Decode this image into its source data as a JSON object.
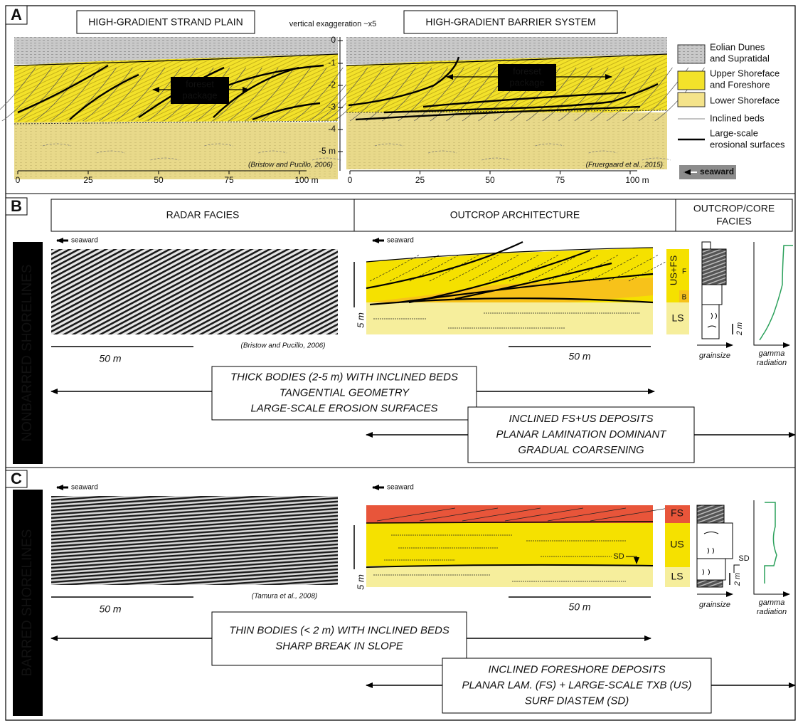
{
  "panel_a": {
    "label": "A",
    "left_title": "HIGH-GRADIENT STRAND PLAIN",
    "right_title": "HIGH-GRADIENT BARRIER SYSTEM",
    "exaggeration": "vertical exaggeration ~x5",
    "depth_ticks": [
      "0",
      "-1",
      "-2",
      "-3",
      "-4",
      "-5 m"
    ],
    "left_x_ticks": [
      "0",
      "25",
      "50",
      "75",
      "100 m"
    ],
    "right_x_ticks": [
      "0",
      "25",
      "50",
      "75",
      "100 m"
    ],
    "left_foreset": [
      "foreset",
      "package"
    ],
    "right_foreset": [
      "foreset",
      "package"
    ],
    "left_citation": "(Bristow and Pucillo, 2006)",
    "right_citation": "(Fruergaard et al., 2015)",
    "legend": [
      {
        "lines": [
          "Eolian Dunes",
          "and Supratidal"
        ]
      },
      {
        "lines": [
          "Upper Shoreface",
          "and Foreshore"
        ]
      },
      {
        "lines": [
          "Lower Shoreface"
        ]
      },
      {
        "lines": [
          "Inclined beds"
        ]
      },
      {
        "lines": [
          "Large-scale",
          "erosional surfaces"
        ]
      }
    ],
    "seaward": "seaward"
  },
  "panel_b": {
    "label": "B",
    "headers": [
      "RADAR FACIES",
      "OUTCROP ARCHITECTURE",
      [
        "OUTCROP/CORE",
        "FACIES"
      ]
    ],
    "side_label": "NONBARRED SHORELINES",
    "radar_seaward": "seaward",
    "outcrop_seaward": "seaward",
    "citation": "(Bristow and Pucillo, 2006)",
    "radar_scale": "50 m",
    "outcrop_scale": "50 m",
    "vertical_scale": "5 m",
    "facies": [
      "US+FS",
      "F",
      "B",
      "LS"
    ],
    "core_scale": "2 m",
    "grainsize": "grainsize",
    "gamma": [
      "gamma",
      "radiation"
    ],
    "box_1": [
      "THICK BODIES (2-5 m) WITH INCLINED BEDS",
      "TANGENTIAL GEOMETRY",
      "LARGE-SCALE EROSION SURFACES"
    ],
    "box_2": [
      "INCLINED FS+US DEPOSITS",
      "PLANAR LAMINATION DOMINANT",
      "GRADUAL COARSENING"
    ]
  },
  "panel_c": {
    "label": "C",
    "side_label": "BARRED SHORELINES",
    "radar_seaward": "seaward",
    "outcrop_seaward": "seaward",
    "citation": "(Tamura et al., 2008)",
    "radar_scale": "50 m",
    "outcrop_scale": "50 m",
    "vertical_scale": "5 m",
    "facies": [
      "FS",
      "US",
      "LS"
    ],
    "sd_outcrop": "SD",
    "sd_core": "SD",
    "core_scale": "2 m",
    "grainsize": "grainsize",
    "gamma": [
      "gamma",
      "radiation"
    ],
    "box_1": [
      "THIN BODIES (< 2 m) WITH INCLINED BEDS",
      "SHARP BREAK IN SLOPE"
    ],
    "box_2": [
      "INCLINED FORESHORE DEPOSITS",
      "PLANAR LAM. (FS) + LARGE-SCALE TXB (US)",
      "SURF DIASTEM (SD)"
    ]
  }
}
